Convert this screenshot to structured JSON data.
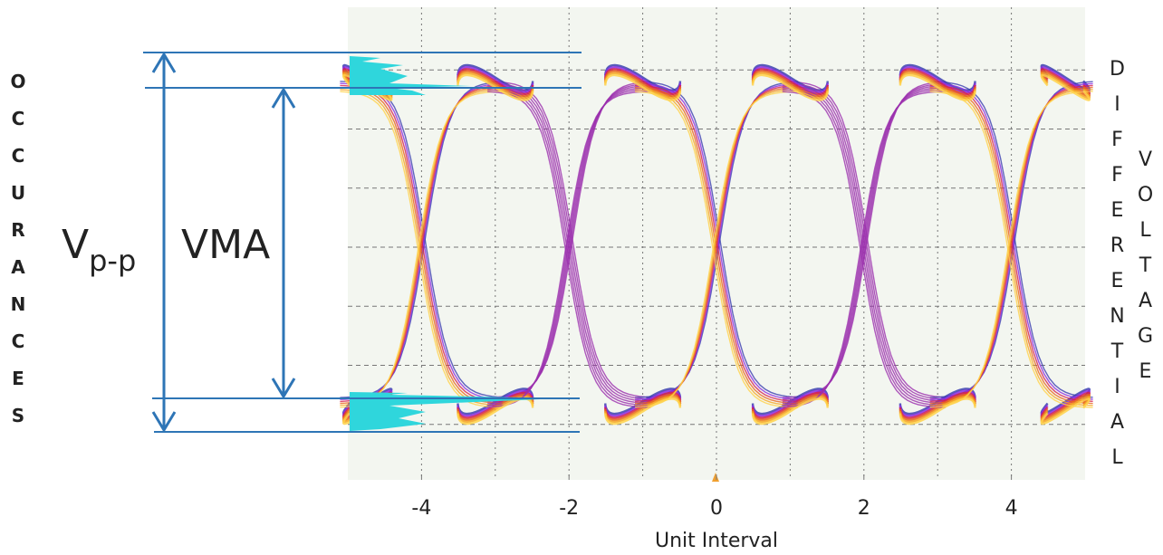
{
  "left_label": "OCCURANCES",
  "right_label_1": "DIFFERENTIAL",
  "right_label_2": "VOLTAGE",
  "vpp_label": "V",
  "vpp_subscript": "p-p",
  "vma_label": "VMA",
  "x_axis": {
    "label": "Unit Interval",
    "xlim": [
      -5,
      5
    ],
    "xticks": [
      -4,
      -2,
      0,
      2,
      4
    ]
  }
}
